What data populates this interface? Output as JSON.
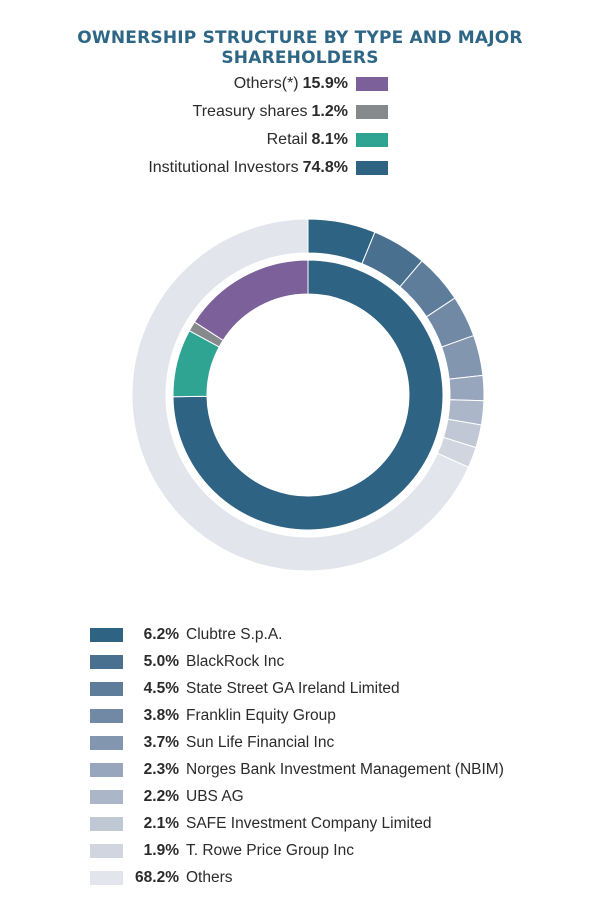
{
  "title": "OWNERSHIP STRUCTURE BY TYPE AND MAJOR SHAREHOLDERS",
  "chart_data": [
    {
      "type": "pie",
      "variant": "donut-inner",
      "title": "OWNERSHIP STRUCTURE BY TYPE AND MAJOR SHAREHOLDERS",
      "slices": [
        {
          "label": "Others(*)",
          "pct_text": "15.9%",
          "value": 15.9,
          "color": "#7b6099"
        },
        {
          "label": "Treasury shares",
          "pct_text": "1.2%",
          "value": 1.2,
          "color": "#878a8d"
        },
        {
          "label": "Retail",
          "pct_text": "8.1%",
          "value": 8.1,
          "color": "#2fa493"
        },
        {
          "label": "Institutional Investors",
          "pct_text": "74.8%",
          "value": 74.8,
          "color": "#2e6383"
        }
      ],
      "legend_position": "top"
    },
    {
      "type": "pie",
      "variant": "donut-outer",
      "slices": [
        {
          "label": "Clubtre S.p.A.",
          "pct_text": "6.2%",
          "value": 6.2,
          "color": "#2e6383"
        },
        {
          "label": "BlackRock Inc",
          "pct_text": "5.0%",
          "value": 5.0,
          "color": "#4a7090"
        },
        {
          "label": "State Street GA Ireland Limited",
          "pct_text": "4.5%",
          "value": 4.5,
          "color": "#5d7d9b"
        },
        {
          "label": "Franklin Equity Group",
          "pct_text": "3.8%",
          "value": 3.8,
          "color": "#7189a5"
        },
        {
          "label": "Sun Life Financial Inc",
          "pct_text": "3.7%",
          "value": 3.7,
          "color": "#8396af"
        },
        {
          "label": "Norges Bank Investment Management (NBIM)",
          "pct_text": "2.3%",
          "value": 2.3,
          "color": "#98a6bd"
        },
        {
          "label": "UBS AG",
          "pct_text": "2.2%",
          "value": 2.2,
          "color": "#abb6c8"
        },
        {
          "label": "SAFE Investment Company Limited",
          "pct_text": "2.1%",
          "value": 2.1,
          "color": "#c0c7d5"
        },
        {
          "label": "T. Rowe Price Group Inc",
          "pct_text": "1.9%",
          "value": 1.9,
          "color": "#d0d5df"
        },
        {
          "label": "Others",
          "pct_text": "68.2%",
          "value": 68.2,
          "color": "#e2e5eb"
        }
      ],
      "legend_position": "bottom"
    }
  ]
}
